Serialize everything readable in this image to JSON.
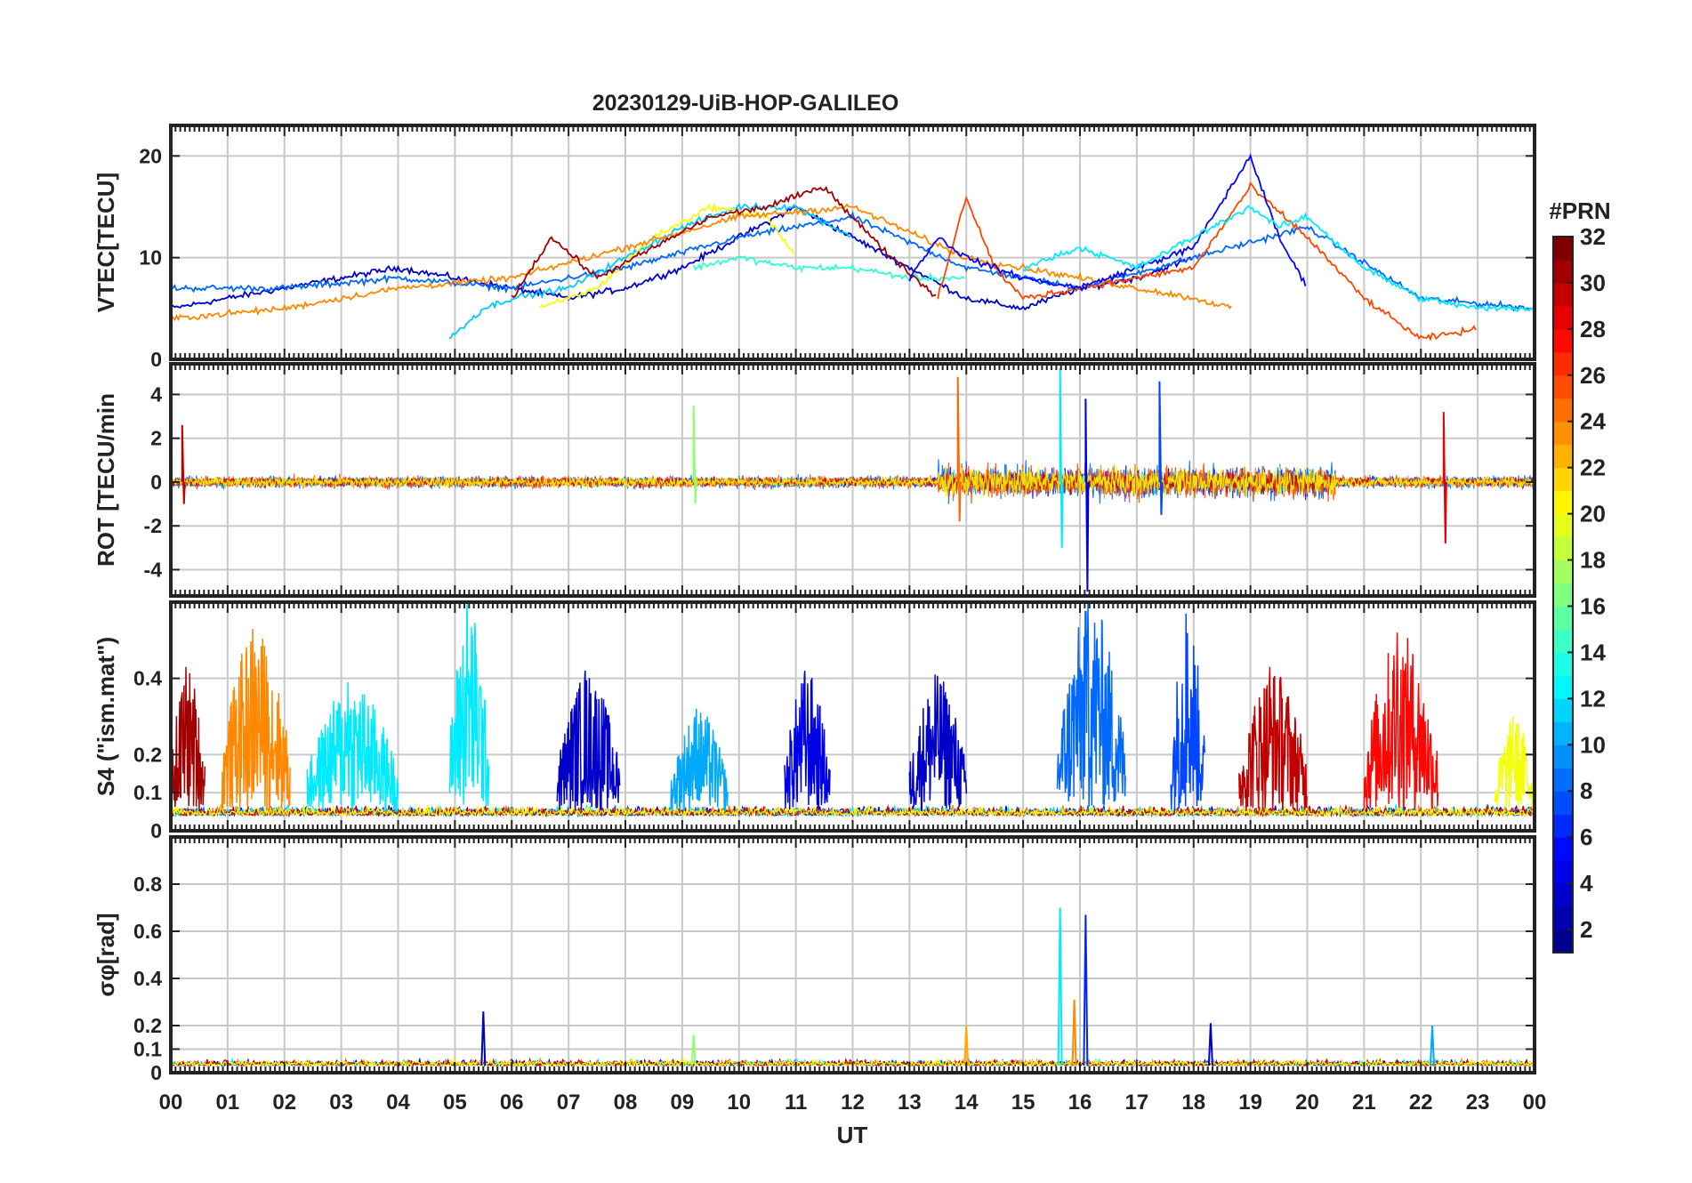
{
  "chart_data": {
    "type": "line",
    "title": "20230129-UiB-HOP-GALILEO",
    "xlabel": "UT",
    "x_range": [
      0,
      24
    ],
    "x_tick_labels": [
      "00",
      "01",
      "02",
      "03",
      "04",
      "05",
      "06",
      "07",
      "08",
      "09",
      "10",
      "11",
      "12",
      "13",
      "14",
      "15",
      "16",
      "17",
      "18",
      "19",
      "20",
      "21",
      "22",
      "23",
      "00"
    ],
    "grid": true,
    "colorbar": {
      "label": "#PRN",
      "range": [
        1,
        32
      ],
      "tick_labels": [
        "2",
        "4",
        "6",
        "8",
        "10",
        "12",
        "14",
        "16",
        "18",
        "20",
        "22",
        "24",
        "26",
        "28",
        "30",
        "32"
      ],
      "colormap": "jet",
      "colors": [
        "#00008f",
        "#0000ff",
        "#0080ff",
        "#00ffff",
        "#80ff80",
        "#ffff00",
        "#ff8000",
        "#ff0000",
        "#800000"
      ]
    },
    "panels": [
      {
        "ylabel": "VTEC[TECU]",
        "ylim": [
          0,
          23
        ],
        "yticks": [
          0,
          10,
          20
        ],
        "ytick_labels": [
          "0",
          "10",
          "20"
        ],
        "series": [
          {
            "prn": 3,
            "x": [
              0,
              1,
              2,
              3,
              4,
              5,
              6,
              7,
              8,
              9,
              10,
              11,
              12,
              13,
              14,
              15,
              16,
              17,
              18
            ],
            "y": [
              5,
              6,
              7,
              8,
              9,
              8,
              7,
              6,
              7,
              9,
              12,
              15,
              12,
              9,
              6,
              5,
              7,
              8,
              10
            ]
          },
          {
            "prn": 8,
            "x": [
              0,
              2,
              4,
              6,
              8,
              10,
              12,
              14,
              16,
              18,
              20,
              22,
              24
            ],
            "y": [
              7,
              7,
              8,
              7,
              9,
              12,
              14,
              9,
              7,
              10,
              13,
              6,
              5
            ]
          },
          {
            "prn": 11,
            "x": [
              4.9,
              5.5,
              6,
              7,
              8,
              9,
              10,
              11,
              12
            ],
            "y": [
              2,
              5,
              6,
              7,
              10,
              13,
              15,
              15,
              12
            ]
          },
          {
            "prn": 14,
            "x": [
              9.2,
              10,
              11,
              12,
              13,
              14
            ],
            "y": [
              9,
              10,
              9,
              9,
              8,
              8
            ]
          },
          {
            "prn": 20,
            "x": [
              6.5,
              7.5,
              8.5,
              9.5,
              10.5,
              11
            ],
            "y": [
              5,
              7,
              12,
              15,
              14,
              10
            ]
          },
          {
            "prn": 24,
            "x": [
              0,
              2,
              4,
              6,
              8,
              10,
              12,
              14,
              16,
              17,
              18,
              18.7
            ],
            "y": [
              4,
              5,
              7,
              8,
              11,
              14,
              15,
              10,
              8,
              7,
              6,
              5
            ]
          },
          {
            "prn": 26,
            "x": [
              13.5,
              14,
              14.5,
              15,
              16,
              17,
              18,
              19,
              20,
              21,
              22,
              23
            ],
            "y": [
              6,
              16,
              9,
              6,
              7,
              8,
              9,
              17,
              12,
              6,
              2,
              3
            ]
          },
          {
            "prn": 31,
            "x": [
              6,
              6.7,
              7.5,
              8.5,
              9.5,
              10.5,
              11.5,
              12.5,
              13.5
            ],
            "y": [
              6,
              12,
              8,
              11,
              14,
              15,
              17,
              11,
              6
            ]
          },
          {
            "prn": 5,
            "x": [
              13,
              13.5,
              14,
              15,
              16,
              17,
              18,
              19,
              19.5,
              20
            ],
            "y": [
              8,
              12,
              10,
              8,
              7,
              9,
              11,
              20,
              12,
              7
            ]
          },
          {
            "prn": 12,
            "x": [
              15,
              16,
              17,
              18,
              19,
              19.5,
              20,
              21,
              22,
              23,
              24
            ],
            "y": [
              9,
              11,
              9,
              12,
              15,
              13,
              14,
              9,
              6,
              5,
              5
            ]
          }
        ]
      },
      {
        "ylabel": "ROT [TECU/min",
        "ylim": [
          -5.2,
          5.4
        ],
        "yticks": [
          -4,
          -2,
          0,
          2,
          4
        ],
        "ytick_labels": [
          "-4",
          "-2",
          "0",
          "2",
          "4"
        ],
        "spikes": [
          {
            "prn": 25,
            "x": 13.85,
            "ymax": 4.8,
            "ymin": -1.8
          },
          {
            "prn": 12,
            "x": 15.65,
            "ymax": 5.2,
            "ymin": -3.0
          },
          {
            "prn": 4,
            "x": 16.1,
            "ymax": 3.8,
            "ymin": -5.0
          },
          {
            "prn": 7,
            "x": 17.4,
            "ymax": 4.6,
            "ymin": -1.5
          },
          {
            "prn": 17,
            "x": 9.2,
            "ymax": 3.5,
            "ymin": -1.0
          },
          {
            "prn": 29,
            "x": 22.4,
            "ymax": 3.2,
            "ymin": -2.8
          },
          {
            "prn": 30,
            "x": 0.2,
            "ymax": 2.6,
            "ymin": -1.0
          }
        ]
      },
      {
        "ylabel": "S4 (\"ism.mat\")",
        "ylim": [
          0,
          0.6
        ],
        "yticks": [
          0,
          0.1,
          0.2,
          0.4
        ],
        "ytick_labels": [
          "0",
          "0.1",
          "0.2",
          "0.4"
        ],
        "bursts": [
          {
            "prn": 31,
            "x0": 0,
            "x1": 0.6,
            "peak": 0.43
          },
          {
            "prn": 24,
            "x0": 0.9,
            "x1": 2.1,
            "peak": 0.53
          },
          {
            "prn": 12,
            "x0": 2.4,
            "x1": 4.0,
            "peak": 0.39
          },
          {
            "prn": 12,
            "x0": 4.9,
            "x1": 5.6,
            "peak": 0.6
          },
          {
            "prn": 3,
            "x0": 6.8,
            "x1": 7.9,
            "peak": 0.42
          },
          {
            "prn": 10,
            "x0": 8.8,
            "x1": 9.8,
            "peak": 0.32
          },
          {
            "prn": 4,
            "x0": 10.8,
            "x1": 11.6,
            "peak": 0.42
          },
          {
            "prn": 3,
            "x0": 13.0,
            "x1": 14.0,
            "peak": 0.41
          },
          {
            "prn": 8,
            "x0": 15.6,
            "x1": 16.8,
            "peak": 0.6
          },
          {
            "prn": 7,
            "x0": 17.6,
            "x1": 18.2,
            "peak": 0.57
          },
          {
            "prn": 30,
            "x0": 18.8,
            "x1": 20.0,
            "peak": 0.43
          },
          {
            "prn": 28,
            "x0": 21.0,
            "x1": 22.3,
            "peak": 0.52
          },
          {
            "prn": 20,
            "x0": 23.3,
            "x1": 24.0,
            "peak": 0.3
          }
        ]
      },
      {
        "ylabel": "σφ[rad]",
        "ylim": [
          0,
          1.0
        ],
        "yticks": [
          0,
          0.1,
          0.2,
          0.4,
          0.6,
          0.8
        ],
        "ytick_labels": [
          "0",
          "0.1",
          "0.2",
          "0.4",
          "0.6",
          "0.8"
        ],
        "spikes": [
          {
            "prn": 3,
            "x": 5.5,
            "ymax": 0.26
          },
          {
            "prn": 17,
            "x": 9.2,
            "ymax": 0.16
          },
          {
            "prn": 23,
            "x": 14.0,
            "ymax": 0.2
          },
          {
            "prn": 12,
            "x": 15.65,
            "ymax": 0.7
          },
          {
            "prn": 24,
            "x": 15.9,
            "ymax": 0.31
          },
          {
            "prn": 6,
            "x": 16.1,
            "ymax": 0.67
          },
          {
            "prn": 3,
            "x": 18.3,
            "ymax": 0.21
          },
          {
            "prn": 10,
            "x": 22.2,
            "ymax": 0.2
          }
        ]
      }
    ]
  }
}
